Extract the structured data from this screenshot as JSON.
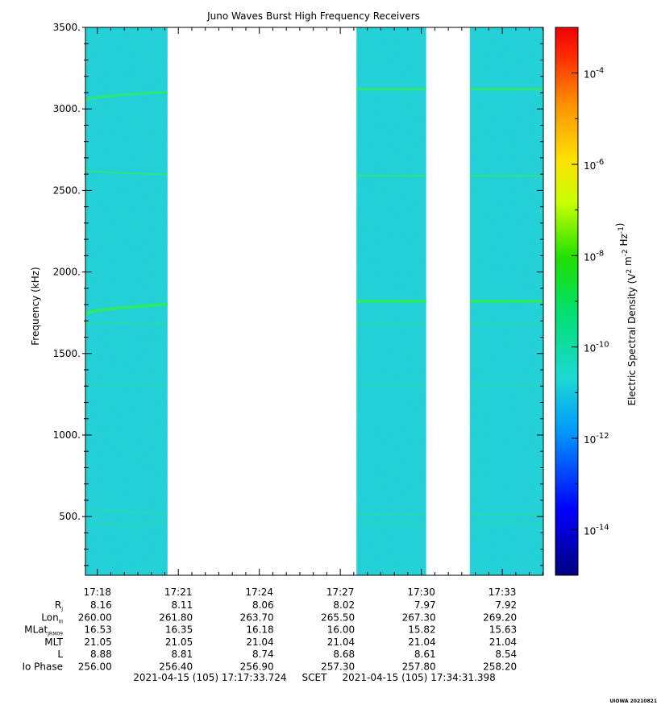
{
  "colors": {
    "background_spectrum": "#1fd6d0",
    "emission_line": "#2ee86a",
    "gap": "#ffffff"
  },
  "chart_data": {
    "type": "heatmap",
    "title": "Juno Waves Burst High Frequency Receivers",
    "ylabel": "Frequency (kHz)",
    "colorbar_label": "Electric Spectral Density (V^2 m^-2 Hz^-1)",
    "ylim": [
      140,
      3500
    ],
    "yticks": [
      500,
      1000,
      1500,
      2000,
      2500,
      3000,
      3500
    ],
    "ytick_labels": [
      "500.",
      "1000.",
      "1500.",
      "2000.",
      "2500.",
      "3000.",
      "3500."
    ],
    "xlim_minutes": [
      1037.56,
      1054.52
    ],
    "x_ticks": [
      "17:18",
      "17:21",
      "17:24",
      "17:27",
      "17:30",
      "17:33"
    ],
    "x_tick_minutes": [
      1038,
      1041,
      1044,
      1047,
      1050,
      1053
    ],
    "colorbar_log_range": [
      -15,
      -3
    ],
    "colorbar_ticks": [
      {
        "base": "10",
        "exp": "-4",
        "value": -4
      },
      {
        "base": "10",
        "exp": "-6",
        "value": -6
      },
      {
        "base": "10",
        "exp": "-8",
        "value": -8
      },
      {
        "base": "10",
        "exp": "-10",
        "value": -10
      },
      {
        "base": "10",
        "exp": "-12",
        "value": -12
      },
      {
        "base": "10",
        "exp": "-14",
        "value": -14
      }
    ],
    "data_segments_minutes": [
      {
        "start": 1037.56,
        "end": 1040.6
      },
      {
        "start": 1047.6,
        "end": 1050.18
      },
      {
        "start": 1051.8,
        "end": 1054.52
      }
    ],
    "emission_lines": [
      {
        "start_khz": 3050,
        "end_khz": 3120,
        "width": 3,
        "strength": 0.95
      },
      {
        "start_khz": 2625,
        "end_khz": 2590,
        "width": 2,
        "strength": 0.8
      },
      {
        "start_khz": 1740,
        "end_khz": 1820,
        "width": 4,
        "strength": 1.0
      },
      {
        "start_khz": 1690,
        "end_khz": 1680,
        "width": 1.5,
        "strength": 0.55
      },
      {
        "start_khz": 1300,
        "end_khz": 1300,
        "width": 1.2,
        "strength": 0.4
      },
      {
        "start_khz": 550,
        "end_khz": 510,
        "width": 1.5,
        "strength": 0.45
      },
      {
        "start_khz": 450,
        "end_khz": 455,
        "width": 1.2,
        "strength": 0.35
      }
    ]
  },
  "ephemeris": {
    "rows": [
      {
        "label": "R",
        "sub": "J",
        "values": [
          "8.16",
          "8.11",
          "8.06",
          "8.02",
          "7.97",
          "7.92"
        ]
      },
      {
        "label": "Lon",
        "sub": "III",
        "values": [
          "260.00",
          "261.80",
          "263.70",
          "265.50",
          "267.30",
          "269.20"
        ]
      },
      {
        "label": "MLat",
        "sub": "JRM09",
        "values": [
          "16.53",
          "16.35",
          "16.18",
          "16.00",
          "15.82",
          "15.63"
        ]
      },
      {
        "label": "MLT",
        "sub": "",
        "values": [
          "21.05",
          "21.05",
          "21.04",
          "21.04",
          "21.04",
          "21.04"
        ]
      },
      {
        "label": "L",
        "sub": "",
        "values": [
          "8.88",
          "8.81",
          "8.74",
          "8.68",
          "8.61",
          "8.54"
        ]
      },
      {
        "label": "Io Phase",
        "sub": "",
        "values": [
          "256.00",
          "256.40",
          "256.90",
          "257.30",
          "257.80",
          "258.20"
        ]
      }
    ]
  },
  "footer": {
    "time_range": "2021-04-15 (105) 17:17:33.724     SCET     2021-04-15 (105) 17:34:31.398",
    "stamp": "UIOWA 20210821"
  }
}
